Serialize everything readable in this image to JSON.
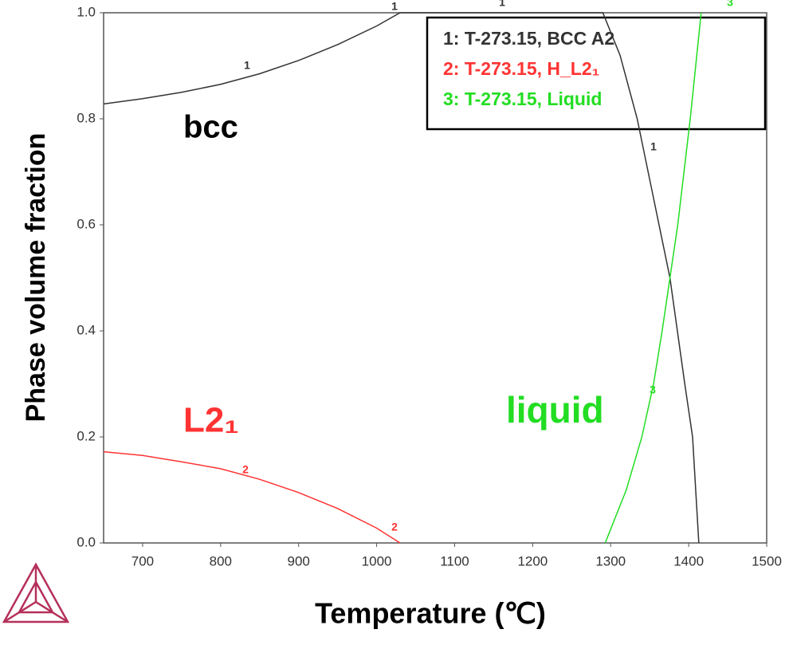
{
  "chart_data": {
    "type": "line",
    "x_label": "Temperature (℃)",
    "y_label": "Phase volume fraction",
    "xlim": [
      650,
      1500
    ],
    "ylim": [
      0,
      1
    ],
    "xticks": [
      700,
      800,
      900,
      1000,
      1100,
      1200,
      1300,
      1400,
      1500
    ],
    "yticks": [
      {
        "value": 0,
        "label": "0.0"
      },
      0.2,
      0.4,
      0.6,
      0.8,
      {
        "value": 1,
        "label": "1.0"
      }
    ],
    "grid": false,
    "legend_position": "upper right",
    "series": [
      {
        "name": "1: T-273.15, BCC A2",
        "color": "#333333",
        "x": [
          650,
          700,
          750,
          800,
          850,
          900,
          950,
          1000,
          1030,
          1100,
          1200,
          1290,
          1312,
          1334,
          1355,
          1376,
          1395,
          1405,
          1413
        ],
        "values": [
          0.828,
          0.838,
          0.85,
          0.865,
          0.885,
          0.91,
          0.94,
          0.975,
          1.0,
          1.0,
          1.0,
          1.0,
          0.92,
          0.8,
          0.65,
          0.5,
          0.3,
          0.2,
          0.0
        ]
      },
      {
        "name": "2: T-273.15, H_L2₁",
        "color": "#ff3333",
        "x": [
          650,
          700,
          750,
          800,
          850,
          900,
          950,
          1000,
          1030
        ],
        "values": [
          0.172,
          0.165,
          0.153,
          0.14,
          0.12,
          0.095,
          0.065,
          0.028,
          0.0
        ]
      },
      {
        "name": "3: T-273.15, Liquid",
        "color": "#22dd22",
        "x": [
          1293,
          1320,
          1340,
          1355,
          1366,
          1376,
          1386,
          1394,
          1402,
          1409,
          1416
        ],
        "values": [
          0.0,
          0.1,
          0.2,
          0.3,
          0.4,
          0.5,
          0.6,
          0.7,
          0.8,
          0.9,
          1.0
        ]
      }
    ],
    "curve_labels": [
      "1",
      "1",
      "1",
      "1",
      "2",
      "2",
      "3",
      "3"
    ],
    "annotations": [
      {
        "text": "bcc",
        "color": "#000000"
      },
      {
        "text": "L2₁",
        "color": "#ff3333"
      },
      {
        "text": "liquid",
        "color": "#22dd22"
      }
    ]
  }
}
